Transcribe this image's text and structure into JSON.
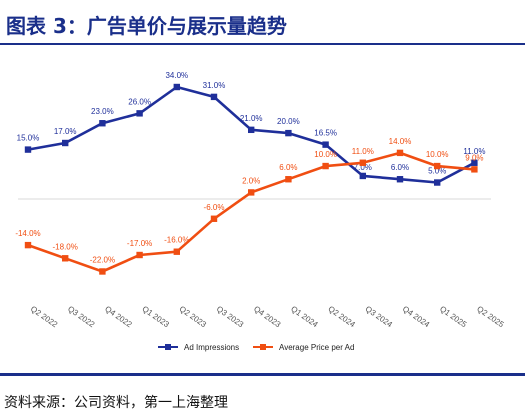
{
  "header": {
    "title": "图表 3：广告单价与展示量趋势"
  },
  "footer": {
    "source": "资料来源：公司资料，第一上海整理"
  },
  "colors": {
    "accent": "#1a2f8a",
    "series1": "#1f2f9a",
    "series2": "#f04e12"
  },
  "chart_data": {
    "type": "line",
    "categories": [
      "Q2 2022",
      "Q3 2022",
      "Q4 2022",
      "Q1 2023",
      "Q2 2023",
      "Q3 2023",
      "Q4 2023",
      "Q1 2024",
      "Q2 2024",
      "Q3 2024",
      "Q4 2024",
      "Q1 2025",
      "Q2 2025"
    ],
    "series": [
      {
        "name": "Ad Impressions",
        "values": [
          15,
          17,
          23,
          26,
          34,
          31,
          21,
          20,
          16.5,
          7,
          6,
          5,
          11
        ],
        "labels": [
          "15.0%",
          "17.0%",
          "23.0%",
          "26.0%",
          "34.0%",
          "31.0%",
          "21.0%",
          "20.0%",
          "16.5%",
          "7.0%",
          "6.0%",
          "5.0%",
          "11.0%"
        ]
      },
      {
        "name": "Average Price per Ad",
        "values": [
          -14,
          -18,
          -22,
          -17,
          -16,
          -6,
          2,
          6,
          10,
          11,
          14,
          10,
          9
        ],
        "labels": [
          "-14.0%",
          "-18.0%",
          "-22.0%",
          "-17.0%",
          "-16.0%",
          "-6.0%",
          "2.0%",
          "6.0%",
          "10.0%",
          "11.0%",
          "14.0%",
          "10.0%",
          "9.0%"
        ]
      }
    ],
    "xlabel": "",
    "ylabel": "",
    "ylim": [
      -30,
      40
    ],
    "grid": false,
    "zero_line": true,
    "legend": "bottom"
  }
}
